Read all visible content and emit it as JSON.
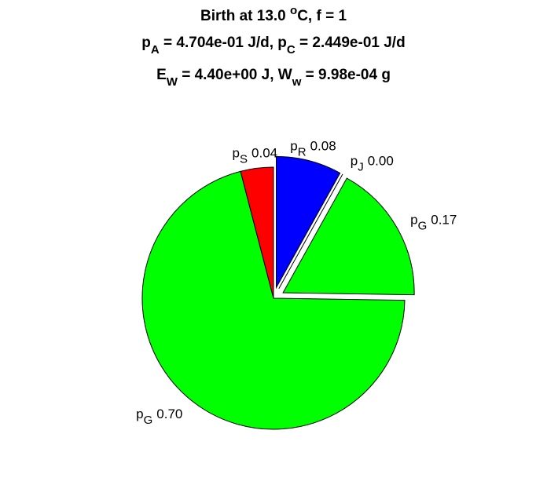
{
  "chart_data": {
    "type": "pie",
    "title": [
      [
        "Birth at 13.0 ",
        "o",
        "C, f = 1"
      ],
      [
        "p",
        "A",
        " = 4.704e-01 J/d, p",
        "C",
        " = 2.449e-01 J/d"
      ],
      [
        "E",
        "W",
        " = 4.40e+00 J, W",
        "w",
        " = 9.98e-04 g"
      ]
    ],
    "categories": [
      [
        "p",
        "R"
      ],
      [
        "p",
        "J"
      ],
      [
        "p",
        "G"
      ],
      [
        "p",
        "G"
      ],
      [
        "p",
        "S"
      ]
    ],
    "values": [
      0.08,
      0.0,
      0.17,
      0.7,
      0.04
    ],
    "value_labels": [
      "0.08",
      "0.00",
      "0.17",
      "0.70",
      "0.04"
    ],
    "colors": [
      "#0000ff",
      "#ffffff",
      "#00ff00",
      "#00ff00",
      "#ff0000"
    ],
    "explode": [
      true,
      true,
      true,
      false,
      false
    ]
  }
}
